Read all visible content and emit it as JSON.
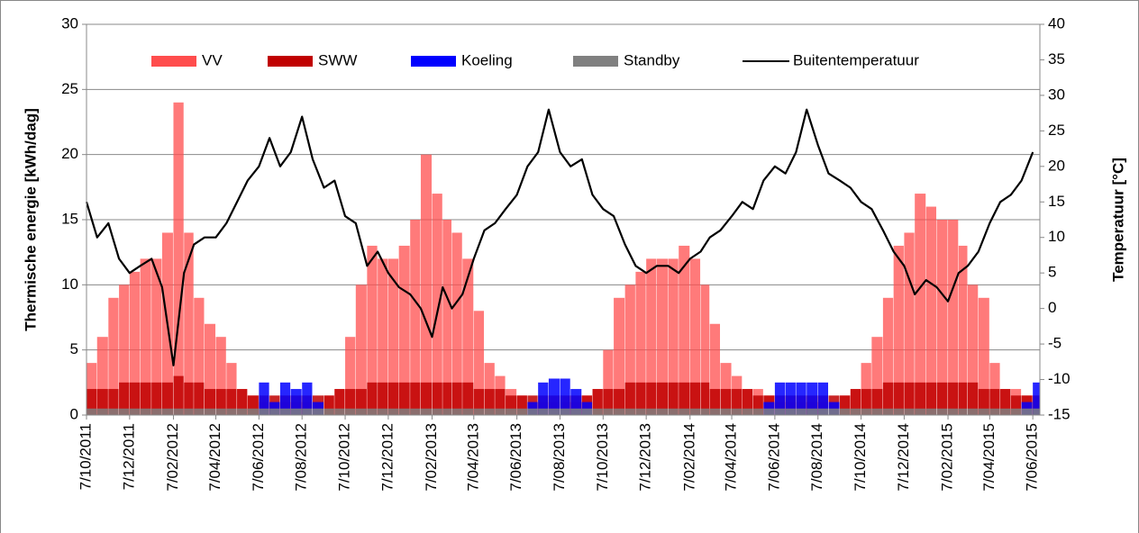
{
  "chart_data": {
    "type": "bar-line",
    "y_label": "Thermische energie [kWh/dag]",
    "y2_label": "Temperatuur [°C]",
    "x": [
      "2011-10-07",
      "2011-10-22",
      "2011-11-07",
      "2011-11-22",
      "2011-12-07",
      "2011-12-22",
      "2012-01-07",
      "2012-01-22",
      "2012-02-07",
      "2012-02-22",
      "2012-03-07",
      "2012-03-22",
      "2012-04-07",
      "2012-04-22",
      "2012-05-07",
      "2012-05-22",
      "2012-06-07",
      "2012-06-22",
      "2012-07-07",
      "2012-07-22",
      "2012-08-07",
      "2012-08-22",
      "2012-09-07",
      "2012-09-22",
      "2012-10-07",
      "2012-10-22",
      "2012-11-07",
      "2012-11-22",
      "2012-12-07",
      "2012-12-22",
      "2013-01-07",
      "2013-01-22",
      "2013-02-07",
      "2013-02-22",
      "2013-03-07",
      "2013-03-22",
      "2013-04-07",
      "2013-04-22",
      "2013-05-07",
      "2013-05-22",
      "2013-06-07",
      "2013-06-22",
      "2013-07-07",
      "2013-07-22",
      "2013-08-07",
      "2013-08-22",
      "2013-09-07",
      "2013-09-22",
      "2013-10-07",
      "2013-10-22",
      "2013-11-07",
      "2013-11-22",
      "2013-12-07",
      "2013-12-22",
      "2014-01-07",
      "2014-01-22",
      "2014-02-07",
      "2014-02-22",
      "2014-03-07",
      "2014-03-22",
      "2014-04-07",
      "2014-04-22",
      "2014-05-07",
      "2014-05-22",
      "2014-06-07",
      "2014-06-22",
      "2014-07-07",
      "2014-07-22",
      "2014-08-07",
      "2014-08-22",
      "2014-09-07",
      "2014-09-22",
      "2014-10-07",
      "2014-10-22",
      "2014-11-07",
      "2014-11-22",
      "2014-12-07",
      "2014-12-22",
      "2015-01-07",
      "2015-01-22",
      "2015-02-07",
      "2015-02-22",
      "2015-03-07",
      "2015-03-22",
      "2015-04-07",
      "2015-04-22",
      "2015-05-07",
      "2015-05-22",
      "2015-06-07"
    ],
    "series": [
      {
        "name": "VV",
        "color": "#ff4d4d",
        "values": [
          4,
          6,
          9,
          10,
          11,
          12,
          12,
          14,
          24,
          14,
          9,
          7,
          6,
          4,
          2,
          1.5,
          1,
          1,
          1,
          1,
          1,
          1,
          1.5,
          2,
          6,
          10,
          13,
          12,
          12,
          13,
          15,
          20,
          17,
          15,
          14,
          12,
          8,
          4,
          3,
          2,
          1.5,
          1,
          1,
          1,
          1,
          1,
          1.5,
          2,
          5,
          9,
          10,
          11,
          12,
          12,
          12,
          13,
          12,
          10,
          7,
          4,
          3,
          2,
          2,
          1.5,
          1,
          1,
          1,
          1,
          1,
          1,
          1.5,
          2,
          4,
          6,
          9,
          13,
          14,
          17,
          16,
          15,
          15,
          13,
          10,
          9,
          4,
          2,
          2,
          1.5,
          1.5
        ]
      },
      {
        "name": "SWW",
        "color": "#c00000",
        "values": [
          2,
          2,
          2,
          2.5,
          2.5,
          2.5,
          2.5,
          2.5,
          3,
          2.5,
          2.5,
          2,
          2,
          2,
          2,
          1.5,
          1.5,
          1.5,
          1.5,
          1.5,
          1.5,
          1.5,
          1.5,
          2,
          2,
          2,
          2.5,
          2.5,
          2.5,
          2.5,
          2.5,
          2.5,
          2.5,
          2.5,
          2.5,
          2.5,
          2,
          2,
          2,
          1.5,
          1.5,
          1.5,
          1.5,
          1.5,
          1.5,
          1.5,
          1.5,
          2,
          2,
          2,
          2.5,
          2.5,
          2.5,
          2.5,
          2.5,
          2.5,
          2.5,
          2.5,
          2,
          2,
          2,
          2,
          1.5,
          1.5,
          1.5,
          1.5,
          1.5,
          1.5,
          1.5,
          1.5,
          1.5,
          2,
          2,
          2,
          2.5,
          2.5,
          2.5,
          2.5,
          2.5,
          2.5,
          2.5,
          2.5,
          2.5,
          2,
          2,
          2,
          1.5,
          1.5,
          1.5
        ]
      },
      {
        "name": "Koeling",
        "color": "#0000ff",
        "values": [
          0,
          0,
          0,
          0,
          0,
          0,
          0,
          0,
          0,
          0,
          0,
          0,
          0,
          0,
          0,
          0,
          2.5,
          1,
          2.5,
          2,
          2.5,
          1,
          0,
          0,
          0,
          0,
          0,
          0,
          0,
          0,
          0,
          0,
          0,
          0,
          0,
          0,
          0,
          0,
          0,
          0,
          0,
          1,
          2.5,
          2.8,
          2.8,
          2,
          1,
          0,
          0,
          0,
          0,
          0,
          0,
          0,
          0,
          0,
          0,
          0,
          0,
          0,
          0,
          0,
          0,
          1,
          2.5,
          2.5,
          2.5,
          2.5,
          2.5,
          1,
          0,
          0,
          0,
          0,
          0,
          0,
          0,
          0,
          0,
          0,
          0,
          0,
          0,
          0,
          0,
          0,
          0,
          1,
          2.5
        ]
      },
      {
        "name": "Standby",
        "color": "#808080",
        "values": [
          0.5,
          0.5,
          0.5,
          0.5,
          0.5,
          0.5,
          0.5,
          0.5,
          0.5,
          0.5,
          0.5,
          0.5,
          0.5,
          0.5,
          0.5,
          0.5,
          0.5,
          0.5,
          0.5,
          0.5,
          0.5,
          0.5,
          0.5,
          0.5,
          0.5,
          0.5,
          0.5,
          0.5,
          0.5,
          0.5,
          0.5,
          0.5,
          0.5,
          0.5,
          0.5,
          0.5,
          0.5,
          0.5,
          0.5,
          0.5,
          0.5,
          0.5,
          0.5,
          0.5,
          0.5,
          0.5,
          0.5,
          0.5,
          0.5,
          0.5,
          0.5,
          0.5,
          0.5,
          0.5,
          0.5,
          0.5,
          0.5,
          0.5,
          0.5,
          0.5,
          0.5,
          0.5,
          0.5,
          0.5,
          0.5,
          0.5,
          0.5,
          0.5,
          0.5,
          0.5,
          0.5,
          0.5,
          0.5,
          0.5,
          0.5,
          0.5,
          0.5,
          0.5,
          0.5,
          0.5,
          0.5,
          0.5,
          0.5,
          0.5,
          0.5,
          0.5,
          0.5,
          0.5,
          0.5
        ]
      },
      {
        "name": "Buitentemperatuur",
        "color": "#000000",
        "type": "line",
        "axis": "y2",
        "values": [
          15,
          10,
          12,
          7,
          5,
          6,
          7,
          3,
          -8,
          5,
          9,
          10,
          10,
          12,
          15,
          18,
          20,
          24,
          20,
          22,
          27,
          21,
          17,
          18,
          13,
          12,
          6,
          8,
          5,
          3,
          2,
          0,
          -4,
          3,
          0,
          2,
          7,
          11,
          12,
          14,
          16,
          20,
          22,
          28,
          22,
          20,
          21,
          16,
          14,
          13,
          9,
          6,
          5,
          6,
          6,
          5,
          7,
          8,
          10,
          11,
          13,
          15,
          14,
          18,
          20,
          19,
          22,
          28,
          23,
          19,
          18,
          17,
          15,
          14,
          11,
          8,
          6,
          2,
          4,
          3,
          1,
          5,
          6,
          8,
          12,
          15,
          16,
          18,
          22
        ]
      }
    ],
    "xlim": [
      "2011-10-07",
      "2015-06-17"
    ],
    "xticks": [
      {
        "value": "2011-10-07",
        "label": "7/10/2011"
      },
      {
        "value": "2011-12-07",
        "label": "7/12/2011"
      },
      {
        "value": "2012-02-07",
        "label": "7/02/2012"
      },
      {
        "value": "2012-04-07",
        "label": "7/04/2012"
      },
      {
        "value": "2012-06-07",
        "label": "7/06/2012"
      },
      {
        "value": "2012-08-07",
        "label": "7/08/2012"
      },
      {
        "value": "2012-10-07",
        "label": "7/10/2012"
      },
      {
        "value": "2012-12-07",
        "label": "7/12/2012"
      },
      {
        "value": "2013-02-07",
        "label": "7/02/2013"
      },
      {
        "value": "2013-04-07",
        "label": "7/04/2013"
      },
      {
        "value": "2013-06-07",
        "label": "7/06/2013"
      },
      {
        "value": "2013-08-07",
        "label": "7/08/2013"
      },
      {
        "value": "2013-10-07",
        "label": "7/10/2013"
      },
      {
        "value": "2013-12-07",
        "label": "7/12/2013"
      },
      {
        "value": "2014-02-07",
        "label": "7/02/2014"
      },
      {
        "value": "2014-04-07",
        "label": "7/04/2014"
      },
      {
        "value": "2014-06-07",
        "label": "7/06/2014"
      },
      {
        "value": "2014-08-07",
        "label": "7/08/2014"
      },
      {
        "value": "2014-10-07",
        "label": "7/10/2014"
      },
      {
        "value": "2014-12-07",
        "label": "7/12/2014"
      },
      {
        "value": "2015-02-07",
        "label": "7/02/2015"
      },
      {
        "value": "2015-04-07",
        "label": "7/04/2015"
      },
      {
        "value": "2015-06-07",
        "label": "7/06/2015"
      }
    ],
    "ylim": [
      0,
      30
    ],
    "yticks": [
      0,
      5,
      10,
      15,
      20,
      25,
      30
    ],
    "y2lim": [
      -15,
      40
    ],
    "y2ticks": [
      -15,
      -10,
      -5,
      0,
      5,
      10,
      15,
      20,
      25,
      30,
      35,
      40
    ],
    "grid": true,
    "legend": "top"
  }
}
